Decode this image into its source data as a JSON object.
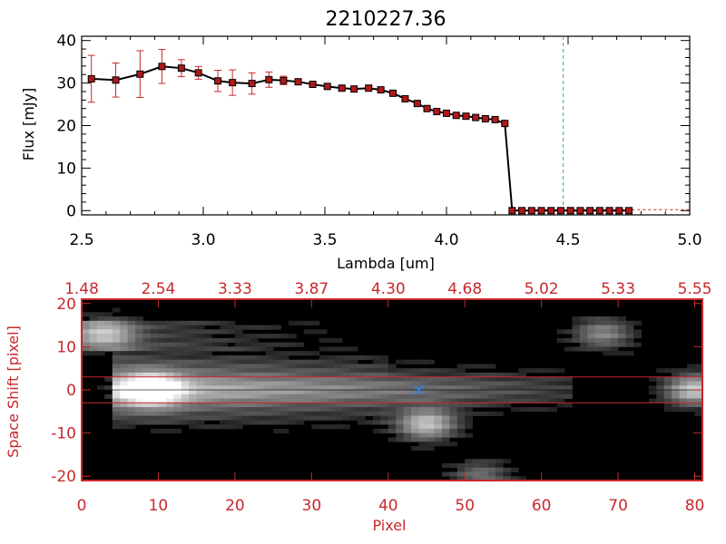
{
  "chart_data": [
    {
      "type": "line",
      "title": "2210227.36",
      "xlabel": "Lambda [um]",
      "ylabel": "Flux [mJy]",
      "xlim": [
        2.5,
        5.0
      ],
      "ylim": [
        -1,
        41
      ],
      "x_ticks": [
        "2.5",
        "3.0",
        "3.5",
        "4.0",
        "4.5",
        "5.0"
      ],
      "y_ticks": [
        "0",
        "10",
        "20",
        "30",
        "40"
      ],
      "marker_line_x": 4.48,
      "series": [
        {
          "x": [
            2.54,
            2.64,
            2.74,
            2.83,
            2.91,
            2.98,
            3.06,
            3.12,
            3.2,
            3.27,
            3.33,
            3.39,
            3.45,
            3.51,
            3.57,
            3.62,
            3.68,
            3.73,
            3.78,
            3.83,
            3.88,
            3.92,
            3.96,
            4.0,
            4.04,
            4.08,
            4.12,
            4.16,
            4.2,
            4.24,
            4.27,
            4.31,
            4.35,
            4.39,
            4.43,
            4.47,
            4.51,
            4.55,
            4.59,
            4.63,
            4.67,
            4.71,
            4.75
          ],
          "y": [
            31.0,
            30.7,
            32.1,
            33.9,
            33.5,
            32.4,
            30.5,
            30.1,
            29.9,
            30.8,
            30.6,
            30.3,
            29.7,
            29.2,
            28.8,
            28.6,
            28.8,
            28.4,
            27.6,
            26.3,
            25.2,
            24.0,
            23.3,
            22.9,
            22.4,
            22.2,
            21.9,
            21.6,
            21.4,
            20.5,
            0,
            0,
            0,
            0,
            0,
            0,
            0,
            0,
            0,
            0,
            0,
            0,
            0
          ],
          "err": [
            5.5,
            4.0,
            5.5,
            4.0,
            2.0,
            1.5,
            2.5,
            3.0,
            2.5,
            1.8,
            1.0,
            0.5,
            0.4,
            0.4,
            0.3,
            0.3,
            0.3,
            0.3,
            0.3,
            0.3,
            0.3,
            0.3,
            0.3,
            0.3,
            0.3,
            0.3,
            0.3,
            0.3,
            0.3,
            0.3,
            0,
            0,
            0,
            0,
            0,
            0,
            0,
            0,
            0,
            0,
            0,
            0,
            0
          ]
        }
      ],
      "colors": {
        "line": "#000000",
        "markers": "#b01818",
        "errorbars": "#c8282c",
        "marker_line": "#3aa0c8"
      }
    },
    {
      "type": "heatmap",
      "xlabel": "Pixel",
      "ylabel": "Space Shift [pixel]",
      "xlim": [
        0,
        81
      ],
      "ylim": [
        -21,
        21
      ],
      "x_ticks": [
        "0",
        "10",
        "20",
        "30",
        "40",
        "50",
        "60",
        "70",
        "80"
      ],
      "y_ticks": [
        "-20",
        "-10",
        "0",
        "10",
        "20"
      ],
      "top_ticks": [
        "1.48",
        "2.54",
        "3.33",
        "3.87",
        "4.30",
        "4.68",
        "5.02",
        "5.33",
        "5.55"
      ],
      "aperture_lines_y": [
        3,
        -3
      ],
      "source_marker": {
        "x": 44,
        "y": 0
      },
      "sources": [
        {
          "x": 9,
          "y": 0,
          "intensity": 1.0
        },
        {
          "x": 3,
          "y": 13,
          "intensity": 0.55
        },
        {
          "x": 45,
          "y": -8,
          "intensity": 0.7
        },
        {
          "x": 68,
          "y": 13,
          "intensity": 0.45
        },
        {
          "x": 80,
          "y": 0,
          "intensity": 0.75
        },
        {
          "x": 52,
          "y": -20,
          "intensity": 0.35
        }
      ],
      "colors": {
        "axes": "#c8282c",
        "aperture": "#c8282c",
        "marker": "#3a7fd0",
        "background": "#000000"
      }
    }
  ]
}
